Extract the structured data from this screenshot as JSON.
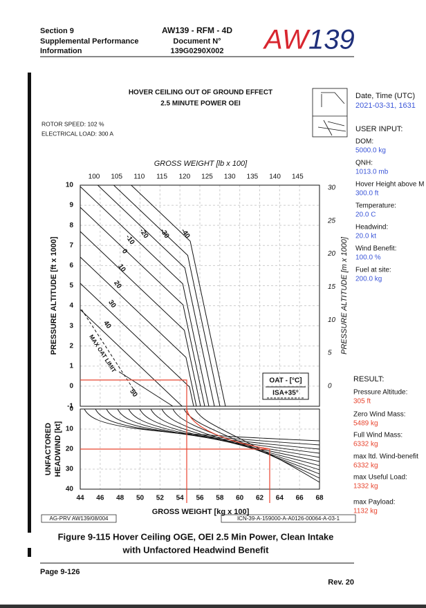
{
  "header": {
    "section": "Section 9",
    "subtitle_lines": [
      "Supplemental Performance",
      "Information"
    ],
    "doc_title": "AW139 - RFM - 4D",
    "doc_label": "Document N°",
    "doc_number": "139G0290X002",
    "logo_left": "AW",
    "logo_right": "139"
  },
  "figure": {
    "title_lines": [
      "HOVER CEILING OUT OF GROUND EFFECT",
      "2.5 MINUTE POWER OEI"
    ],
    "rotor_speed": "ROTOR SPEED: 102 %",
    "electrical_load": "ELECTRICAL LOAD: 300 A",
    "top_axis_label": "GROSS WEIGHT [lb x 100]",
    "top_ticks": [
      100,
      105,
      110,
      115,
      120,
      125,
      130,
      135,
      140,
      145
    ],
    "left_axis_label": "PRESSURE ALTITUDE [ft x 1000]",
    "left_ticks": [
      10,
      9,
      8,
      7,
      6,
      5,
      4,
      3,
      2,
      1,
      0,
      -1
    ],
    "right_axis_label": "PRESSURE ALTITUDE [m x 1000]",
    "right_ticks": [
      30,
      25,
      20,
      15,
      10,
      5,
      0
    ],
    "headwind_axis_lines": [
      "UNFACTORED",
      "HEADWIND [kt]"
    ],
    "headwind_ticks": [
      0,
      10,
      20,
      30,
      40
    ],
    "bottom_ticks": [
      44,
      46,
      48,
      50,
      52,
      54,
      56,
      58,
      60,
      62,
      64,
      66,
      68
    ],
    "bottom_axis_label": "GROSS WEIGHT [kg x 100]",
    "curve_labels": [
      -40,
      -30,
      -20,
      -10,
      0,
      10,
      20,
      30,
      40,
      50
    ],
    "legend": [
      "OAT - [°C]",
      "ISA+35°"
    ],
    "max_oat_label": "MAX OAT LIMIT",
    "ref_left": "AG-PRV AW139/08/004",
    "ref_right": "ICN-39-A-159000-A-A0126-00064-A-03-1",
    "caption_lines": [
      "Figure 9-115 Hover Ceiling OGE, OEI 2.5 Min Power, Clean Intake",
      "with Unfactored Headwind Benefit"
    ]
  },
  "sidebar": {
    "date_label": "Date, Time (UTC)",
    "date_value": "2021-03-31, 1631",
    "input_heading": "USER INPUT:",
    "inputs": [
      {
        "label": "DOM:",
        "value": "5000.0 kg"
      },
      {
        "label": "QNH:",
        "value": "1013.0 mb"
      },
      {
        "label": "Hover Height above M",
        "value": "300.0 ft"
      },
      {
        "label": "Temperature:",
        "value": "20.0 C"
      },
      {
        "label": "Headwind:",
        "value": "20.0 kt"
      },
      {
        "label": "Wind Benefit:",
        "value": "100.0 %"
      },
      {
        "label": "Fuel at site:",
        "value": "200.0 kg"
      }
    ],
    "result_heading": "RESULT:",
    "results": [
      {
        "label": "Pressure Altitude:",
        "value": "305 ft"
      },
      {
        "label": "Zero Wind Mass:",
        "value": "5489 kg"
      },
      {
        "label": "Full Wind Mass:",
        "value": "6332 kg"
      },
      {
        "label": "max ltd. Wind-benefit",
        "value": "6332 kg"
      },
      {
        "label": "max Useful Load:",
        "value": "1332 kg"
      },
      {
        "label": "max Payload:",
        "value": "1132 kg"
      }
    ]
  },
  "footer": {
    "page": "Page 9-126",
    "rev": "Rev. 20"
  }
}
